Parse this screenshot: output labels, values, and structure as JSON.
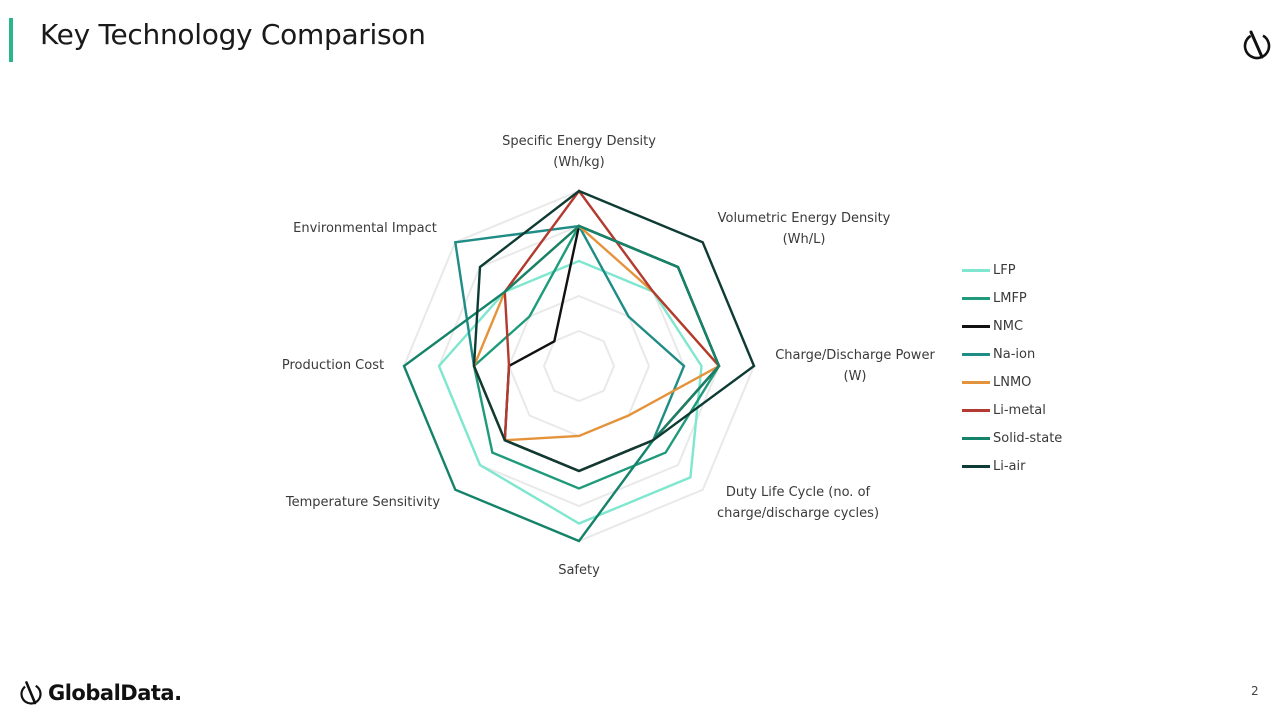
{
  "slide": {
    "title": "Key Technology Comparison",
    "page_number": "2",
    "brand": "GlobalData.",
    "brand_logo_icon": "globaldata-logo-icon",
    "accent_color": "#2bb58c"
  },
  "chart_data": {
    "type": "radar",
    "title": "",
    "axes": [
      [
        "Specific Energy Density",
        "(Wh/kg)"
      ],
      [
        "Volumetric Energy Density",
        "(Wh/L)"
      ],
      [
        "Charge/Discharge Power",
        "(W)"
      ],
      [
        "Duty Life Cycle (no. of",
        "charge/discharge cycles)"
      ],
      [
        "Safety"
      ],
      [
        "Temperature Sensitivity"
      ],
      [
        "Production Cost"
      ],
      [
        "Environmental Impact"
      ]
    ],
    "scale": {
      "min": 0,
      "max": 5,
      "rings": 5
    },
    "grid": true,
    "legend_position": "right",
    "series": [
      {
        "name": "LFP",
        "color": "#7fe6cf",
        "values": [
          3,
          3,
          3.5,
          4.5,
          4.5,
          4,
          4,
          3
        ]
      },
      {
        "name": "LMFP",
        "color": "#1f9a7a",
        "values": [
          4,
          4,
          4,
          3.5,
          3.5,
          3.5,
          3,
          2
        ]
      },
      {
        "name": "NMC",
        "color": "#111111",
        "values": [
          4,
          4,
          4,
          3,
          3,
          3,
          2,
          1
        ]
      },
      {
        "name": "Na-ion",
        "color": "#1f8c86",
        "values": [
          4,
          2,
          3,
          3,
          3,
          3,
          3,
          5
        ]
      },
      {
        "name": "LNMO",
        "color": "#e5933a",
        "values": [
          4,
          3,
          4,
          2,
          2,
          3,
          3,
          3
        ]
      },
      {
        "name": "Li-metal",
        "color": "#b23a2e",
        "values": [
          5,
          3,
          4,
          3,
          3,
          3,
          2,
          3
        ]
      },
      {
        "name": "Solid-state",
        "color": "#14836a",
        "values": [
          4,
          4,
          4,
          3,
          5,
          5,
          5,
          3
        ]
      },
      {
        "name": "Li-air",
        "color": "#0e3b33",
        "values": [
          5,
          5,
          5,
          3,
          3,
          3,
          3,
          4
        ]
      }
    ]
  }
}
